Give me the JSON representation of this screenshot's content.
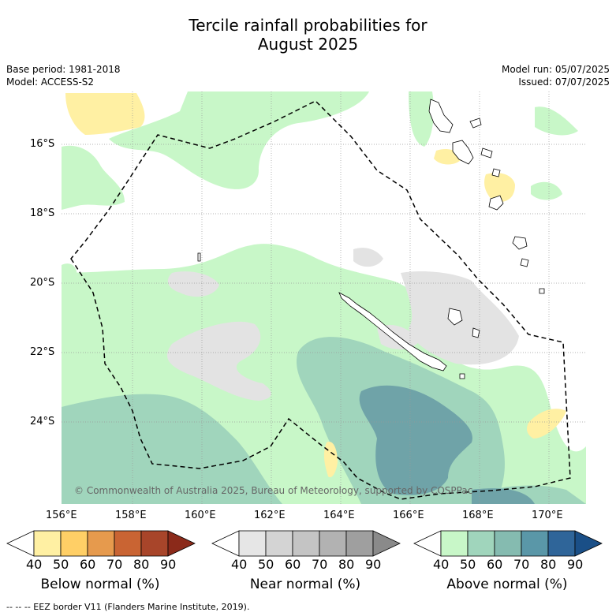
{
  "title_line1": "Tercile rainfall probabilities for",
  "title_line2": "August 2025",
  "base_period": "Base period: 1981-2018",
  "model": "Model: ACCESS-S2",
  "model_run": "Model run: 05/07/2025",
  "issued": "Issued: 07/07/2025",
  "copyright": "© Commonwealth of Australia 2025, Bureau of Meteorology, supported by COSPPac",
  "footnote": "-- -- -- EEZ border V11 (Flanders Marine Institute, 2019).",
  "map": {
    "lon_labels": [
      "156°E",
      "158°E",
      "160°E",
      "162°E",
      "164°E",
      "166°E",
      "168°E",
      "170°E"
    ],
    "lat_labels": [
      "16°S",
      "18°S",
      "20°S",
      "22°S",
      "24°S"
    ]
  },
  "colorbars": [
    {
      "title": "Below normal (%)",
      "ticks": [
        "40",
        "50",
        "60",
        "70",
        "80",
        "90"
      ],
      "colors": [
        "#ffffff",
        "#fff0a3",
        "#ffcf66",
        "#e69a4d",
        "#c96433",
        "#a8452a",
        "#8b2a1a"
      ]
    },
    {
      "title": "Near normal (%)",
      "ticks": [
        "40",
        "50",
        "60",
        "70",
        "80",
        "90"
      ],
      "colors": [
        "#ffffff",
        "#e6e6e6",
        "#d4d4d4",
        "#c4c4c4",
        "#b2b2b2",
        "#9f9f9f",
        "#8a8a8a"
      ]
    },
    {
      "title": "Above normal (%)",
      "ticks": [
        "40",
        "50",
        "60",
        "70",
        "80",
        "90"
      ],
      "colors": [
        "#ffffff",
        "#c8f7c8",
        "#a0d5bc",
        "#85bbb0",
        "#5a97a8",
        "#2f6599",
        "#1a4f87"
      ]
    }
  ],
  "palette": {
    "above_50": "#c8f7c8",
    "above_60": "#a0d5bc",
    "above_70": "#6fa3a8",
    "near_50": "#e3e3e3",
    "below_50": "#fff0a3"
  }
}
